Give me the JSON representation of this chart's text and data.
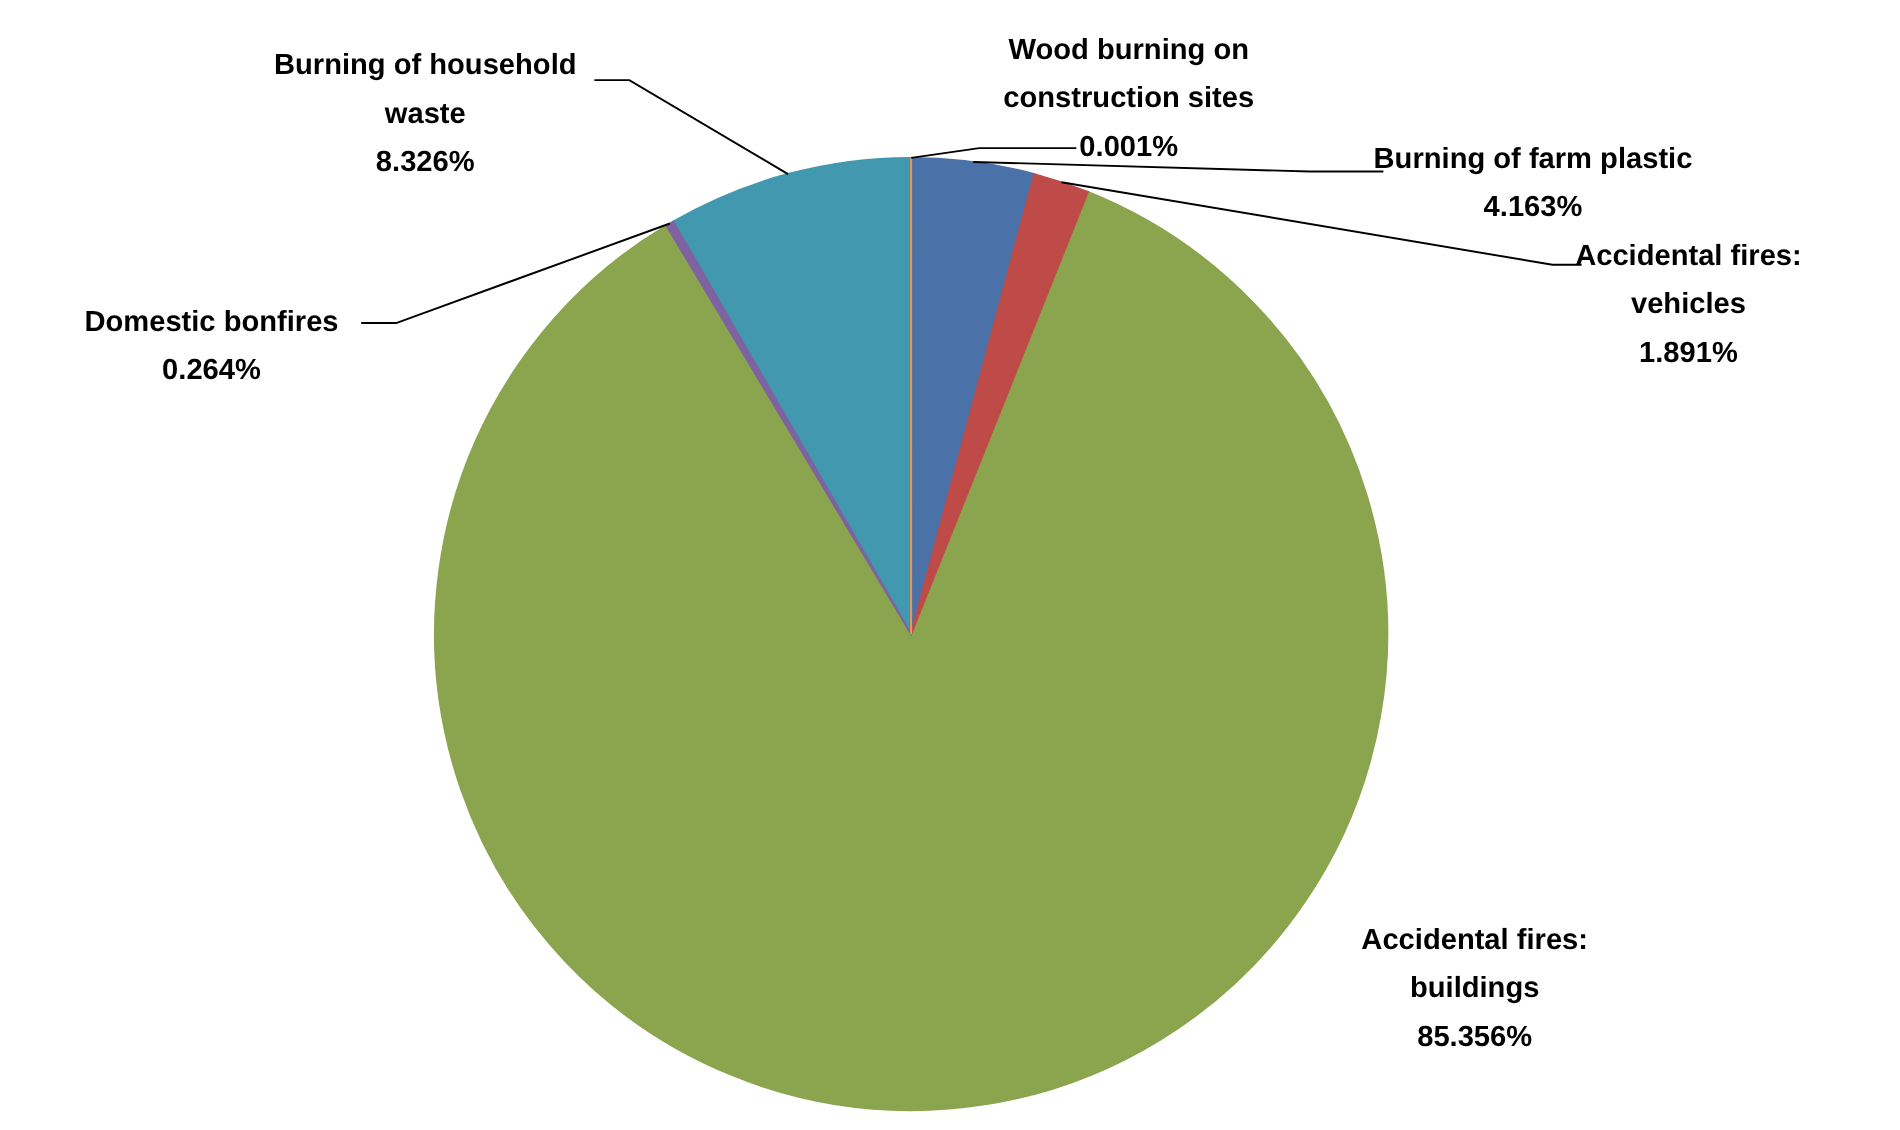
{
  "chart_data": {
    "type": "pie",
    "categories": [
      "Wood burning on construction sites",
      "Burning of farm plastic",
      "Accidental fires: vehicles",
      "Accidental fires: buildings",
      "Domestic bonfires",
      "Burning of household waste"
    ],
    "values": [
      0.001,
      4.163,
      1.891,
      85.356,
      0.264,
      8.326
    ],
    "colors": [
      "#f79646",
      "#4a72a8",
      "#be4b48",
      "#8ba54e",
      "#7e62a1",
      "#4198af"
    ],
    "value_labels": [
      "0.001%",
      "4.163%",
      "1.891%",
      "85.356%",
      "0.264%",
      "8.326%"
    ]
  }
}
